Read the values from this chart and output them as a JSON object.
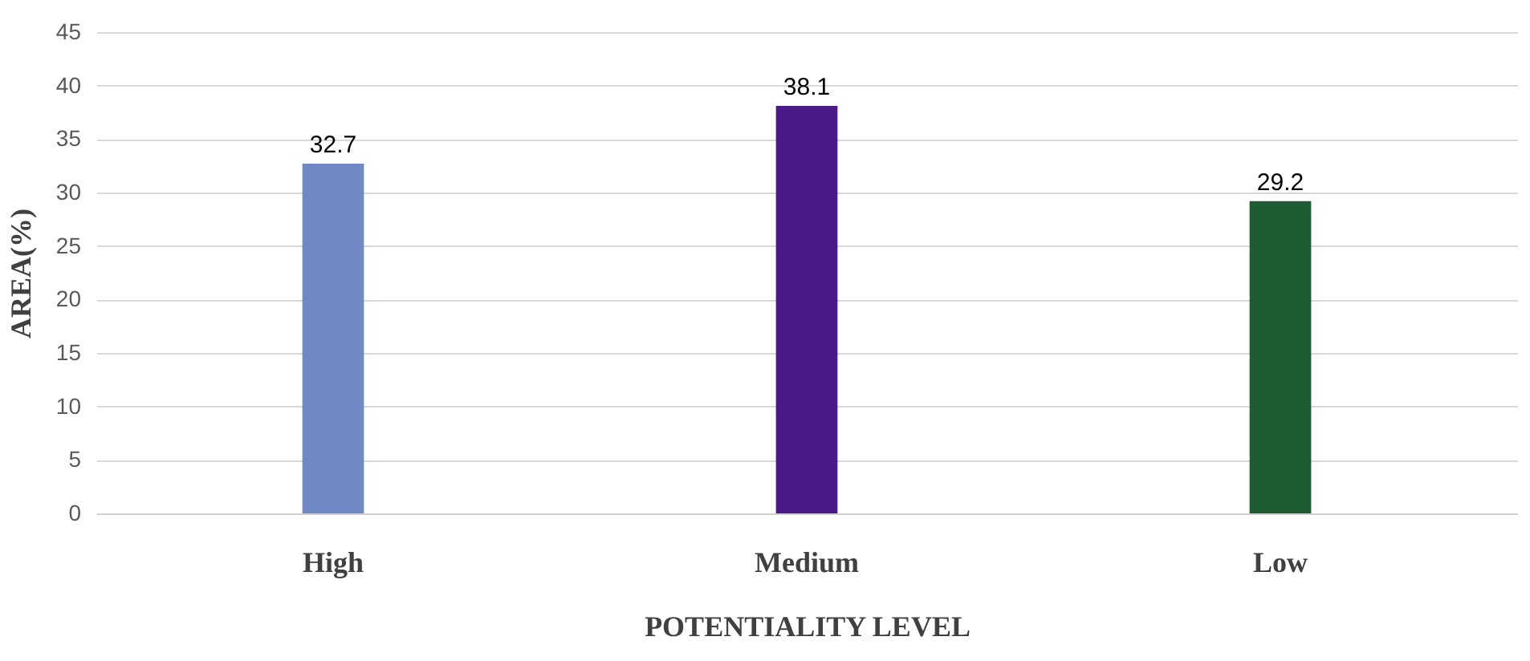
{
  "chart_data": {
    "type": "bar",
    "xlabel": "POTENTIALITY LEVEL",
    "ylabel": "AREA(%)",
    "categories": [
      "High",
      "Medium",
      "Low"
    ],
    "values": [
      32.7,
      38.1,
      29.2
    ],
    "colors": [
      "#7088c4",
      "#4a1a88",
      "#1f5c34"
    ],
    "ylim": [
      0,
      45
    ],
    "yticks": [
      0,
      5,
      10,
      15,
      20,
      25,
      30,
      35,
      40,
      45
    ],
    "grid": "y",
    "data_labels": true
  }
}
